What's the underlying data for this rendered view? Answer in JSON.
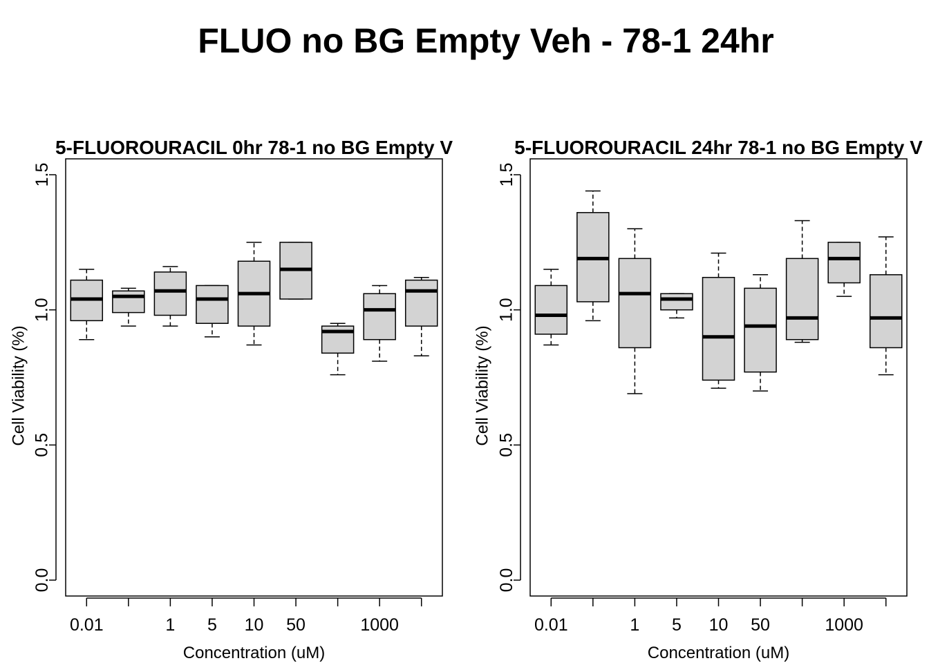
{
  "main_title": "FLUO no BG Empty Veh - 78-1 24hr",
  "chart_data": [
    {
      "type": "boxplot",
      "title": "5-FLUOROURACIL 0hr 78-1 no BG Empty V",
      "xlabel": "Concentration (uM)",
      "ylabel": "Cell Viability (%)",
      "ylim": [
        0,
        1.5
      ],
      "yticks": [
        "0.0",
        "0.5",
        "1.0",
        "1.5"
      ],
      "x_tick_labels": [
        "0.01",
        "",
        "1",
        "5",
        "10",
        "50",
        "",
        "1000",
        ""
      ],
      "box_fill": "#d3d3d3",
      "boxes": [
        {
          "min": 0.89,
          "q1": 0.96,
          "median": 1.04,
          "q3": 1.11,
          "max": 1.15
        },
        {
          "min": 0.94,
          "q1": 0.99,
          "median": 1.05,
          "q3": 1.07,
          "max": 1.08
        },
        {
          "min": 0.94,
          "q1": 0.98,
          "median": 1.07,
          "q3": 1.14,
          "max": 1.16
        },
        {
          "min": 0.9,
          "q1": 0.95,
          "median": 1.04,
          "q3": 1.09,
          "max": 1.09
        },
        {
          "min": 0.87,
          "q1": 0.94,
          "median": 1.06,
          "q3": 1.18,
          "max": 1.25
        },
        {
          "min": 1.04,
          "q1": 1.04,
          "median": 1.15,
          "q3": 1.25,
          "max": 1.25
        },
        {
          "min": 0.76,
          "q1": 0.84,
          "median": 0.92,
          "q3": 0.94,
          "max": 0.95
        },
        {
          "min": 0.81,
          "q1": 0.89,
          "median": 1.0,
          "q3": 1.06,
          "max": 1.09
        },
        {
          "min": 0.83,
          "q1": 0.94,
          "median": 1.07,
          "q3": 1.11,
          "max": 1.12
        }
      ]
    },
    {
      "type": "boxplot",
      "title": "5-FLUOROURACIL 24hr 78-1 no BG Empty V",
      "xlabel": "Concentration (uM)",
      "ylabel": "Cell Viability (%)",
      "ylim": [
        0,
        1.5
      ],
      "yticks": [
        "0.0",
        "0.5",
        "1.0",
        "1.5"
      ],
      "x_tick_labels": [
        "0.01",
        "",
        "1",
        "5",
        "10",
        "50",
        "",
        "1000",
        ""
      ],
      "box_fill": "#d3d3d3",
      "boxes": [
        {
          "min": 0.87,
          "q1": 0.91,
          "median": 0.98,
          "q3": 1.09,
          "max": 1.15
        },
        {
          "min": 0.96,
          "q1": 1.03,
          "median": 1.19,
          "q3": 1.36,
          "max": 1.44
        },
        {
          "min": 0.69,
          "q1": 0.86,
          "median": 1.06,
          "q3": 1.19,
          "max": 1.3
        },
        {
          "min": 0.97,
          "q1": 1.0,
          "median": 1.04,
          "q3": 1.06,
          "max": 1.06
        },
        {
          "min": 0.71,
          "q1": 0.74,
          "median": 0.9,
          "q3": 1.12,
          "max": 1.21
        },
        {
          "min": 0.7,
          "q1": 0.77,
          "median": 0.94,
          "q3": 1.08,
          "max": 1.13
        },
        {
          "min": 0.88,
          "q1": 0.89,
          "median": 0.97,
          "q3": 1.19,
          "max": 1.33
        },
        {
          "min": 1.05,
          "q1": 1.1,
          "median": 1.19,
          "q3": 1.25,
          "max": 1.25
        },
        {
          "min": 0.76,
          "q1": 0.86,
          "median": 0.97,
          "q3": 1.13,
          "max": 1.27
        }
      ]
    }
  ]
}
